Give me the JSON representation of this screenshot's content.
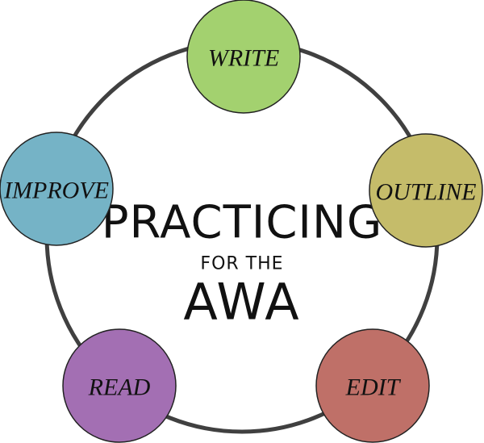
{
  "center": {
    "line1": "PRACTICING",
    "line2": "FOR THE",
    "line3": "AWA"
  },
  "steps": [
    {
      "label": "WRITE",
      "color": "#a3d16f"
    },
    {
      "label": "OUTLINE",
      "color": "#c5bc6a"
    },
    {
      "label": "EDIT",
      "color": "#bf7068"
    },
    {
      "label": "READ",
      "color": "#a36fb3"
    },
    {
      "label": "IMPROVE",
      "color": "#75b3c6"
    }
  ],
  "ring_color": "#404040"
}
